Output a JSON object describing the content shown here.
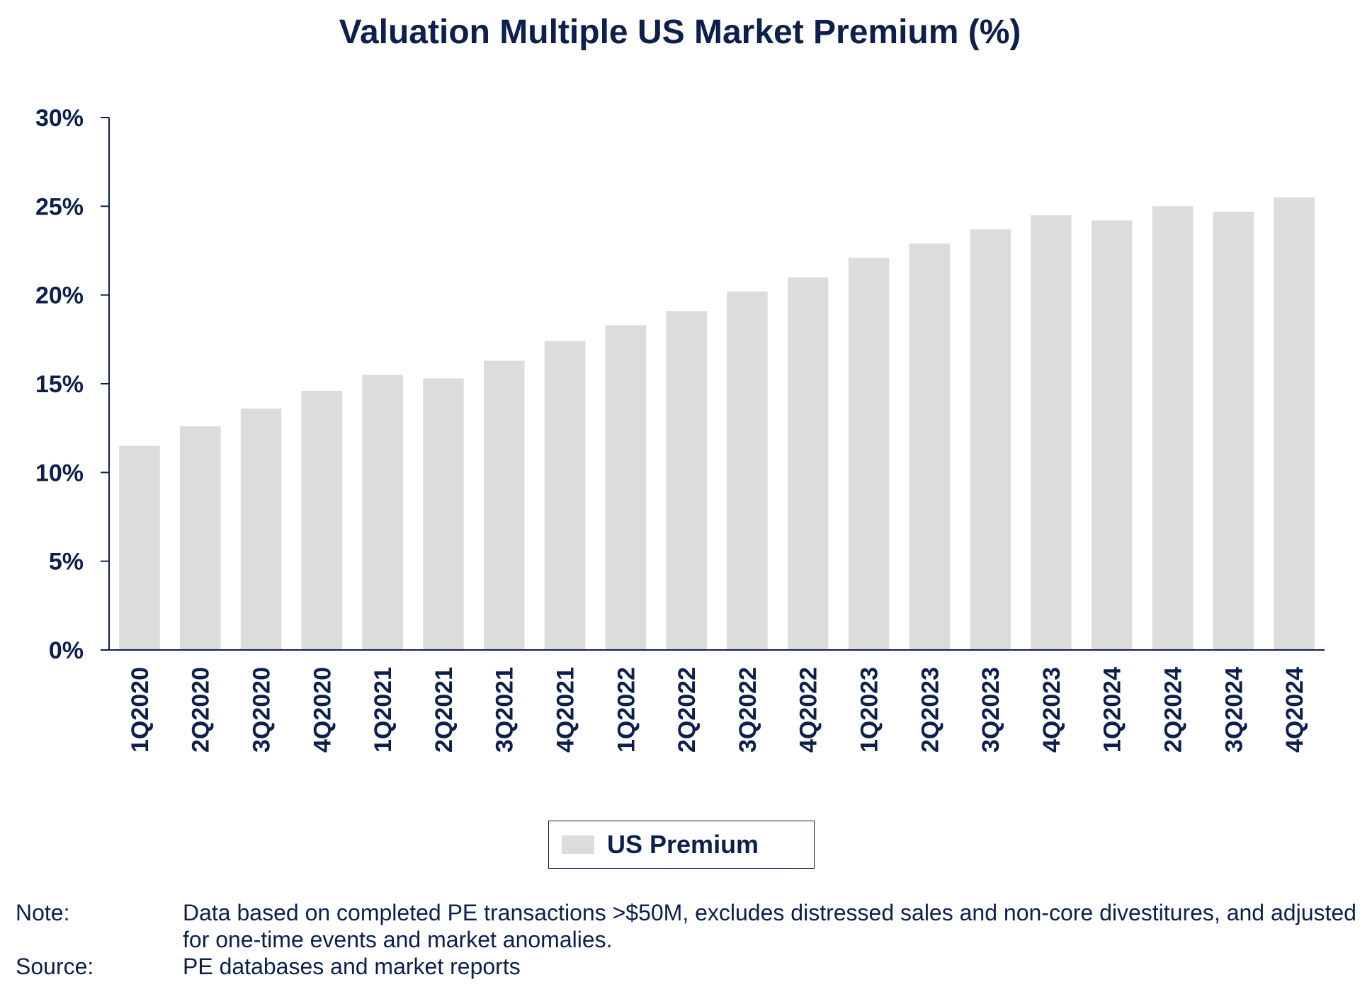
{
  "chart_data": {
    "type": "bar",
    "title": "Valuation Multiple US Market Premium (%)",
    "categories": [
      "1Q2020",
      "2Q2020",
      "3Q2020",
      "4Q2020",
      "1Q2021",
      "2Q2021",
      "3Q2021",
      "4Q2021",
      "1Q2022",
      "2Q2022",
      "3Q2022",
      "4Q2022",
      "1Q2023",
      "2Q2023",
      "3Q2023",
      "4Q2023",
      "1Q2024",
      "2Q2024",
      "3Q2024",
      "4Q2024"
    ],
    "series": [
      {
        "name": "US Premium",
        "values": [
          11.5,
          12.6,
          13.6,
          14.6,
          15.5,
          15.3,
          16.3,
          17.4,
          18.3,
          19.1,
          20.2,
          21.0,
          22.1,
          22.9,
          23.7,
          24.5,
          24.2,
          25.0,
          24.7,
          25.5
        ]
      }
    ],
    "ylim": [
      0,
      30
    ],
    "yticks": [
      0,
      5,
      10,
      15,
      20,
      25,
      30
    ],
    "ytick_labels": [
      "0%",
      "5%",
      "10%",
      "15%",
      "20%",
      "25%",
      "30%"
    ],
    "xlabel": "",
    "ylabel": "",
    "grid": false,
    "legend_position": "bottom-center",
    "bar_color": "#dcdcdc",
    "axis_color": "#0d1f4d"
  },
  "notes": {
    "note_label": "Note:",
    "note_text": "Data based on completed PE transactions >$50M, excludes distressed sales and non-core divestitures, and adjusted for one-time events and market anomalies.",
    "source_label": "Source:",
    "source_text": "PE databases and market reports"
  }
}
